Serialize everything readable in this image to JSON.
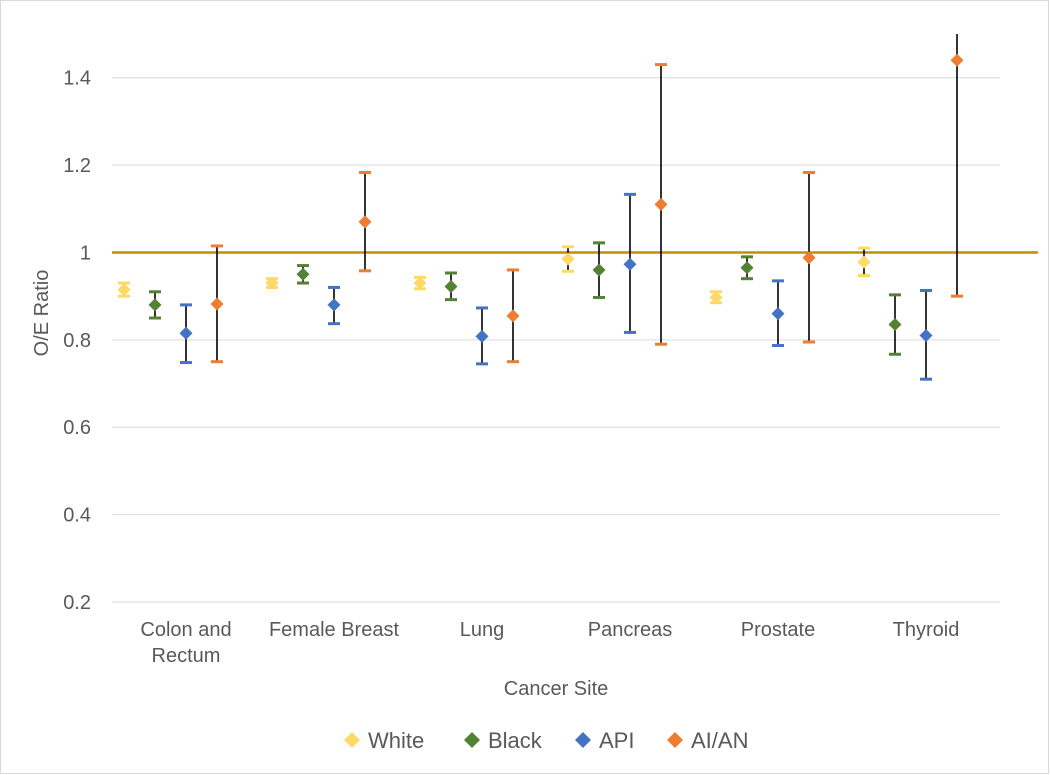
{
  "chart_data": {
    "type": "scatter",
    "title": "",
    "xlabel": "Cancer Site",
    "ylabel": "O/E Ratio",
    "ylim": [
      0.2,
      1.5
    ],
    "yticks": [
      0.2,
      0.4,
      0.6,
      0.8,
      1,
      1.2,
      1.4
    ],
    "ytick_labels": [
      "0.2",
      "0.4",
      "0.6",
      "0.8",
      "1",
      "1.2",
      "1.4"
    ],
    "grid": true,
    "legend_position": "bottom",
    "reference_line": {
      "y": 1,
      "color": "#BF9000"
    },
    "categories": [
      [
        "Colon and",
        "Rectum"
      ],
      [
        "Female Breast"
      ],
      [
        "Lung"
      ],
      [
        "Pancreas"
      ],
      [
        "Prostate"
      ],
      [
        "Thyroid"
      ]
    ],
    "series": [
      {
        "name": "White",
        "color": "#FFD966",
        "values": [
          0.915,
          0.93,
          0.93,
          0.985,
          0.897,
          0.978
        ],
        "lower": [
          0.9,
          0.92,
          0.917,
          0.957,
          0.885,
          0.947
        ],
        "upper": [
          0.93,
          0.94,
          0.943,
          1.013,
          0.91,
          1.01
        ]
      },
      {
        "name": "Black",
        "color": "#548235",
        "values": [
          0.88,
          0.95,
          0.922,
          0.96,
          0.965,
          0.835
        ],
        "lower": [
          0.85,
          0.93,
          0.892,
          0.897,
          0.94,
          0.767
        ],
        "upper": [
          0.91,
          0.97,
          0.953,
          1.022,
          0.99,
          0.903
        ]
      },
      {
        "name": "API",
        "color": "#4472C4",
        "values": [
          0.815,
          0.88,
          0.808,
          0.973,
          0.86,
          0.81
        ],
        "lower": [
          0.748,
          0.837,
          0.745,
          0.817,
          0.787,
          0.71
        ],
        "upper": [
          0.88,
          0.92,
          0.873,
          1.133,
          0.935,
          0.913
        ]
      },
      {
        "name": "AI/AN",
        "color": "#ED7D31",
        "values": [
          0.882,
          1.07,
          0.855,
          1.11,
          0.988,
          1.44
        ],
        "lower": [
          0.75,
          0.958,
          0.75,
          0.79,
          0.795,
          0.9
        ],
        "upper": [
          1.015,
          1.183,
          0.96,
          1.43,
          1.183,
          1.51
        ]
      }
    ]
  }
}
